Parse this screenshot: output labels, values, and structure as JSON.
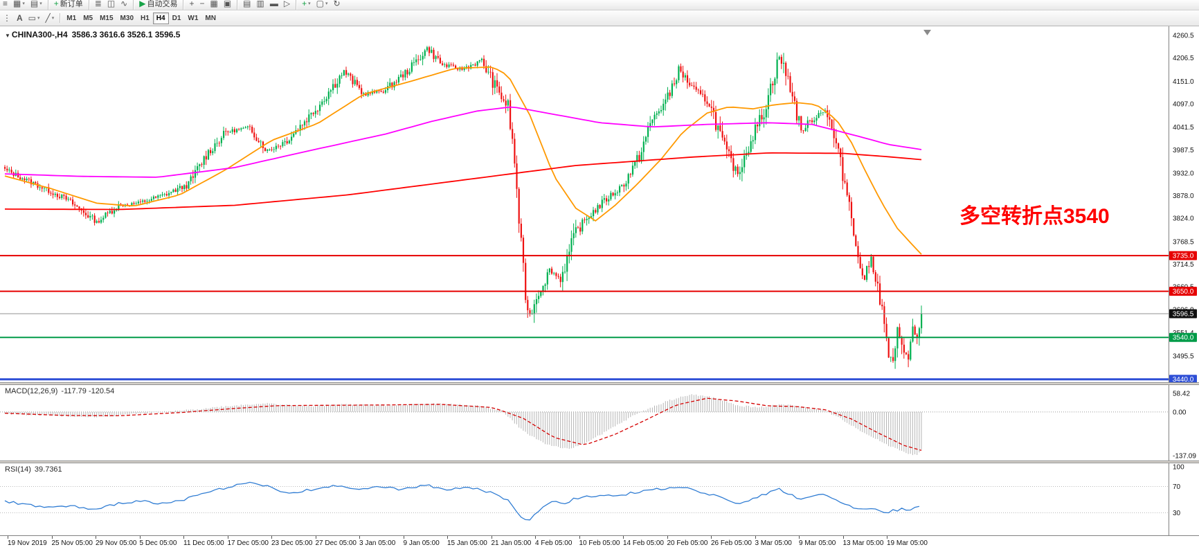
{
  "chart": {
    "caret": "▼",
    "title": "CHINA300-,H4",
    "ohlc": "3586.3 3616.6 3526.1 3596.5"
  },
  "annotation": {
    "text": "多空转折点3540",
    "color": "#FF0000"
  },
  "indicators": {
    "macd": {
      "label": "MACD(12,26,9)",
      "values": "-117.79 -120.54"
    },
    "rsi": {
      "label": "RSI(14)",
      "value": "39.7361"
    }
  },
  "toolbar_main": {
    "items": [
      {
        "name": "window-grip-icon",
        "glyph": "≡"
      },
      {
        "name": "new-chart-icon",
        "glyph": "▦",
        "caret": true
      },
      {
        "name": "profiles-icon",
        "glyph": "▤",
        "caret": true
      },
      {
        "sep": true
      },
      {
        "name": "new-order-button",
        "glyph": "+",
        "color": "#18A348",
        "label": "新订单"
      },
      {
        "sep": true
      },
      {
        "name": "bar-chart-icon",
        "glyph": "≣"
      },
      {
        "name": "candlestick-chart-icon",
        "glyph": "◫"
      },
      {
        "name": "line-chart-icon",
        "glyph": "∿"
      },
      {
        "sep": true
      },
      {
        "name": "autotrading-button",
        "glyph": "▶",
        "color": "#18A348",
        "label": "自动交易"
      },
      {
        "sep": true
      },
      {
        "name": "zoom-in-icon",
        "glyph": "+"
      },
      {
        "name": "zoom-out-icon",
        "glyph": "−"
      },
      {
        "name": "tile-windows-icon",
        "glyph": "▦"
      },
      {
        "name": "arrange-windows-icon",
        "glyph": "▣"
      },
      {
        "sep": true
      },
      {
        "name": "data-window-icon",
        "glyph": "▤"
      },
      {
        "name": "navigator-icon",
        "glyph": "▥"
      },
      {
        "name": "terminal-icon",
        "glyph": "▬"
      },
      {
        "name": "strategy-tester-icon",
        "glyph": "▷"
      },
      {
        "sep": true
      },
      {
        "name": "add-indicator-icon",
        "glyph": "+",
        "color": "#18A348",
        "caret": true
      },
      {
        "name": "template-icon",
        "glyph": "▢",
        "caret": true
      },
      {
        "name": "refresh-icon",
        "glyph": "↻"
      }
    ]
  },
  "toolbar_tools": {
    "items": [
      {
        "name": "toolbar-grip-icon",
        "glyph": "⋮"
      },
      {
        "name": "text-tool",
        "glyph": "A",
        "bold": true
      },
      {
        "name": "shapes-tool",
        "glyph": "▭",
        "caret": true
      },
      {
        "name": "trendline-tool",
        "glyph": "╱",
        "caret": true
      },
      {
        "sep": true
      }
    ]
  },
  "timeframes": {
    "items": [
      {
        "label": "M1"
      },
      {
        "label": "M5"
      },
      {
        "label": "M15"
      },
      {
        "label": "M30"
      },
      {
        "label": "H1"
      },
      {
        "label": "H4",
        "active": true
      },
      {
        "label": "D1"
      },
      {
        "label": "W1"
      },
      {
        "label": "MN"
      }
    ]
  },
  "chart_data": {
    "type": "candlestick",
    "symbol": "CHINA300-",
    "timeframe": "H4",
    "ohlc": {
      "open": 3586.3,
      "high": 3616.6,
      "low": 3526.1,
      "close": 3596.5
    },
    "bars": 420,
    "y_range": {
      "top": 4260.5,
      "bottom": 3440.0
    },
    "y_axis_ticks": [
      4260.5,
      4206.5,
      4151.0,
      4097.0,
      4041.5,
      3987.5,
      3932.0,
      3878.0,
      3824.0,
      3768.5,
      3714.5,
      3660.5,
      3606.0,
      3551.4,
      3495.5
    ],
    "x_axis_labels": [
      "19 Nov 2019",
      "25 Nov 05:00",
      "29 Nov 05:00",
      "5 Dec 05:00",
      "11 Dec 05:00",
      "17 Dec 05:00",
      "23 Dec 05:00",
      "27 Dec 05:00",
      "3 Jan 05:00",
      "9 Jan 05:00",
      "15 Jan 05:00",
      "21 Jan 05:00",
      "4 Feb 05:00",
      "10 Feb 05:00",
      "14 Feb 05:00",
      "20 Feb 05:00",
      "26 Feb 05:00",
      "3 Mar 05:00",
      "9 Mar 05:00",
      "13 Mar 05:00",
      "19 Mar 05:00"
    ],
    "colors": {
      "up": "#00B050",
      "down": "#EE1111",
      "background": "#FFFFFF",
      "axis_text": "#111111"
    },
    "close_path_anchors": [
      [
        0,
        3940
      ],
      [
        14,
        3905
      ],
      [
        28,
        3870
      ],
      [
        42,
        3815
      ],
      [
        52,
        3855
      ],
      [
        61,
        3860
      ],
      [
        73,
        3880
      ],
      [
        84,
        3905
      ],
      [
        92,
        3975
      ],
      [
        101,
        4030
      ],
      [
        112,
        4040
      ],
      [
        120,
        3985
      ],
      [
        129,
        4010
      ],
      [
        143,
        4090
      ],
      [
        155,
        4175
      ],
      [
        164,
        4120
      ],
      [
        174,
        4130
      ],
      [
        185,
        4180
      ],
      [
        193,
        4230
      ],
      [
        200,
        4190
      ],
      [
        209,
        4180
      ],
      [
        218,
        4200
      ],
      [
        225,
        4130
      ],
      [
        230,
        4090
      ],
      [
        233,
        3960
      ],
      [
        235,
        3820
      ],
      [
        238,
        3640
      ],
      [
        240,
        3590
      ],
      [
        244,
        3650
      ],
      [
        249,
        3700
      ],
      [
        254,
        3680
      ],
      [
        261,
        3790
      ],
      [
        267,
        3830
      ],
      [
        275,
        3870
      ],
      [
        282,
        3900
      ],
      [
        289,
        3960
      ],
      [
        296,
        4060
      ],
      [
        303,
        4110
      ],
      [
        308,
        4180
      ],
      [
        315,
        4130
      ],
      [
        322,
        4100
      ],
      [
        329,
        3990
      ],
      [
        335,
        3930
      ],
      [
        340,
        4000
      ],
      [
        347,
        4080
      ],
      [
        354,
        4210
      ],
      [
        359,
        4140
      ],
      [
        364,
        4030
      ],
      [
        369,
        4060
      ],
      [
        375,
        4085
      ],
      [
        380,
        4000
      ],
      [
        383,
        3930
      ],
      [
        387,
        3840
      ],
      [
        390,
        3720
      ],
      [
        393,
        3680
      ],
      [
        396,
        3730
      ],
      [
        398,
        3690
      ],
      [
        401,
        3600
      ],
      [
        404,
        3500
      ],
      [
        406,
        3470
      ],
      [
        408,
        3550
      ],
      [
        411,
        3520
      ],
      [
        413,
        3480
      ],
      [
        415,
        3560
      ],
      [
        417,
        3540
      ],
      [
        419,
        3596.5
      ]
    ],
    "moving_averages": [
      {
        "name": "ma-fast-orange",
        "color": "#FF9900",
        "anchors": [
          [
            0,
            3925
          ],
          [
            21,
            3895
          ],
          [
            42,
            3860
          ],
          [
            59,
            3853
          ],
          [
            80,
            3880
          ],
          [
            101,
            3940
          ],
          [
            122,
            4010
          ],
          [
            143,
            4050
          ],
          [
            164,
            4120
          ],
          [
            185,
            4150
          ],
          [
            206,
            4182
          ],
          [
            223,
            4185
          ],
          [
            230,
            4165
          ],
          [
            240,
            4070
          ],
          [
            251,
            3925
          ],
          [
            261,
            3848
          ],
          [
            270,
            3818
          ],
          [
            279,
            3855
          ],
          [
            289,
            3905
          ],
          [
            300,
            3965
          ],
          [
            310,
            4030
          ],
          [
            321,
            4075
          ],
          [
            331,
            4090
          ],
          [
            342,
            4085
          ],
          [
            352,
            4095
          ],
          [
            362,
            4100
          ],
          [
            371,
            4095
          ],
          [
            380,
            4060
          ],
          [
            387,
            4005
          ],
          [
            394,
            3930
          ],
          [
            401,
            3860
          ],
          [
            408,
            3800
          ],
          [
            415,
            3760
          ],
          [
            419,
            3738
          ]
        ]
      },
      {
        "name": "ma-mid-magenta",
        "color": "#FF00FF",
        "anchors": [
          [
            0,
            3930
          ],
          [
            35,
            3924
          ],
          [
            70,
            3922
          ],
          [
            105,
            3945
          ],
          [
            139,
            3985
          ],
          [
            174,
            4025
          ],
          [
            195,
            4055
          ],
          [
            216,
            4080
          ],
          [
            232,
            4090
          ],
          [
            251,
            4072
          ],
          [
            272,
            4052
          ],
          [
            296,
            4042
          ],
          [
            321,
            4048
          ],
          [
            349,
            4052
          ],
          [
            369,
            4048
          ],
          [
            390,
            4020
          ],
          [
            404,
            4000
          ],
          [
            419,
            3988
          ]
        ]
      },
      {
        "name": "ma-slow-red",
        "color": "#FF0000",
        "anchors": [
          [
            0,
            3846
          ],
          [
            52,
            3845
          ],
          [
            105,
            3855
          ],
          [
            157,
            3880
          ],
          [
            209,
            3915
          ],
          [
            261,
            3950
          ],
          [
            314,
            3970
          ],
          [
            349,
            3980
          ],
          [
            383,
            3979
          ],
          [
            401,
            3972
          ],
          [
            419,
            3964
          ]
        ]
      }
    ],
    "levels": [
      {
        "value": 3735.0,
        "label": "3735.0",
        "color": "#E60000",
        "width": 2
      },
      {
        "value": 3650.0,
        "label": "3650.0",
        "color": "#E60000",
        "width": 2
      },
      {
        "value": 3596.5,
        "label": "3596.5",
        "color": "#909090",
        "width": 1,
        "badge": "#111111",
        "current": true
      },
      {
        "value": 3540.0,
        "label": "3540.0",
        "color": "#009B48",
        "width": 2
      },
      {
        "value": 3440.0,
        "label": "3440.0",
        "color": "#2E4FD6",
        "width": 3
      }
    ],
    "macd": {
      "axis_max": 58.42,
      "axis_min": -137.09,
      "zero_label": "0.00",
      "hist_color": "#B5B5B5",
      "signal_color": "#D40000",
      "line_anchors": [
        [
          0,
          -5
        ],
        [
          21,
          -12
        ],
        [
          42,
          -16
        ],
        [
          59,
          -6
        ],
        [
          80,
          3
        ],
        [
          101,
          18
        ],
        [
          118,
          27
        ],
        [
          139,
          18
        ],
        [
          157,
          24
        ],
        [
          174,
          20
        ],
        [
          195,
          27
        ],
        [
          216,
          20
        ],
        [
          227,
          5
        ],
        [
          237,
          -60
        ],
        [
          247,
          -100
        ],
        [
          258,
          -118
        ],
        [
          268,
          -88
        ],
        [
          279,
          -45
        ],
        [
          289,
          -5
        ],
        [
          303,
          35
        ],
        [
          314,
          55
        ],
        [
          324,
          45
        ],
        [
          335,
          20
        ],
        [
          345,
          14
        ],
        [
          355,
          24
        ],
        [
          366,
          14
        ],
        [
          375,
          4
        ],
        [
          383,
          -25
        ],
        [
          394,
          -70
        ],
        [
          404,
          -105
        ],
        [
          413,
          -130
        ],
        [
          417,
          -137
        ],
        [
          419,
          -117.8
        ]
      ],
      "signal_anchors": [
        [
          0,
          -4
        ],
        [
          28,
          -11
        ],
        [
          52,
          -12
        ],
        [
          80,
          -2
        ],
        [
          105,
          11
        ],
        [
          125,
          20
        ],
        [
          150,
          21
        ],
        [
          174,
          22
        ],
        [
          199,
          24
        ],
        [
          223,
          14
        ],
        [
          237,
          -20
        ],
        [
          251,
          -80
        ],
        [
          265,
          -104
        ],
        [
          279,
          -70
        ],
        [
          293,
          -25
        ],
        [
          307,
          22
        ],
        [
          321,
          43
        ],
        [
          335,
          34
        ],
        [
          349,
          19
        ],
        [
          362,
          17
        ],
        [
          375,
          7
        ],
        [
          387,
          -22
        ],
        [
          399,
          -65
        ],
        [
          411,
          -105
        ],
        [
          419,
          -120.5
        ]
      ]
    },
    "rsi": {
      "color": "#2F7CD3",
      "levels": [
        70,
        30
      ],
      "axis_labels": [
        "100",
        "70",
        "30"
      ],
      "anchors": [
        [
          0,
          48
        ],
        [
          10,
          42
        ],
        [
          21,
          38
        ],
        [
          31,
          40
        ],
        [
          42,
          34
        ],
        [
          52,
          45
        ],
        [
          63,
          48
        ],
        [
          73,
          44
        ],
        [
          84,
          52
        ],
        [
          94,
          62
        ],
        [
          105,
          72
        ],
        [
          115,
          76
        ],
        [
          122,
          68
        ],
        [
          129,
          58
        ],
        [
          139,
          65
        ],
        [
          150,
          70
        ],
        [
          160,
          67
        ],
        [
          171,
          70
        ],
        [
          181,
          65
        ],
        [
          192,
          72
        ],
        [
          202,
          66
        ],
        [
          213,
          68
        ],
        [
          223,
          60
        ],
        [
          230,
          50
        ],
        [
          235,
          25
        ],
        [
          240,
          18
        ],
        [
          246,
          40
        ],
        [
          251,
          48
        ],
        [
          256,
          44
        ],
        [
          261,
          52
        ],
        [
          268,
          55
        ],
        [
          275,
          58
        ],
        [
          282,
          57
        ],
        [
          289,
          62
        ],
        [
          296,
          66
        ],
        [
          303,
          67
        ],
        [
          310,
          70
        ],
        [
          317,
          60
        ],
        [
          324,
          58
        ],
        [
          331,
          48
        ],
        [
          336,
          44
        ],
        [
          342,
          52
        ],
        [
          349,
          60
        ],
        [
          354,
          66
        ],
        [
          359,
          58
        ],
        [
          364,
          50
        ],
        [
          369,
          55
        ],
        [
          375,
          58
        ],
        [
          380,
          48
        ],
        [
          385,
          42
        ],
        [
          390,
          35
        ],
        [
          396,
          38
        ],
        [
          399,
          34
        ],
        [
          403,
          28
        ],
        [
          406,
          33
        ],
        [
          410,
          36
        ],
        [
          413,
          32
        ],
        [
          416,
          38
        ],
        [
          419,
          39.74
        ]
      ]
    }
  }
}
